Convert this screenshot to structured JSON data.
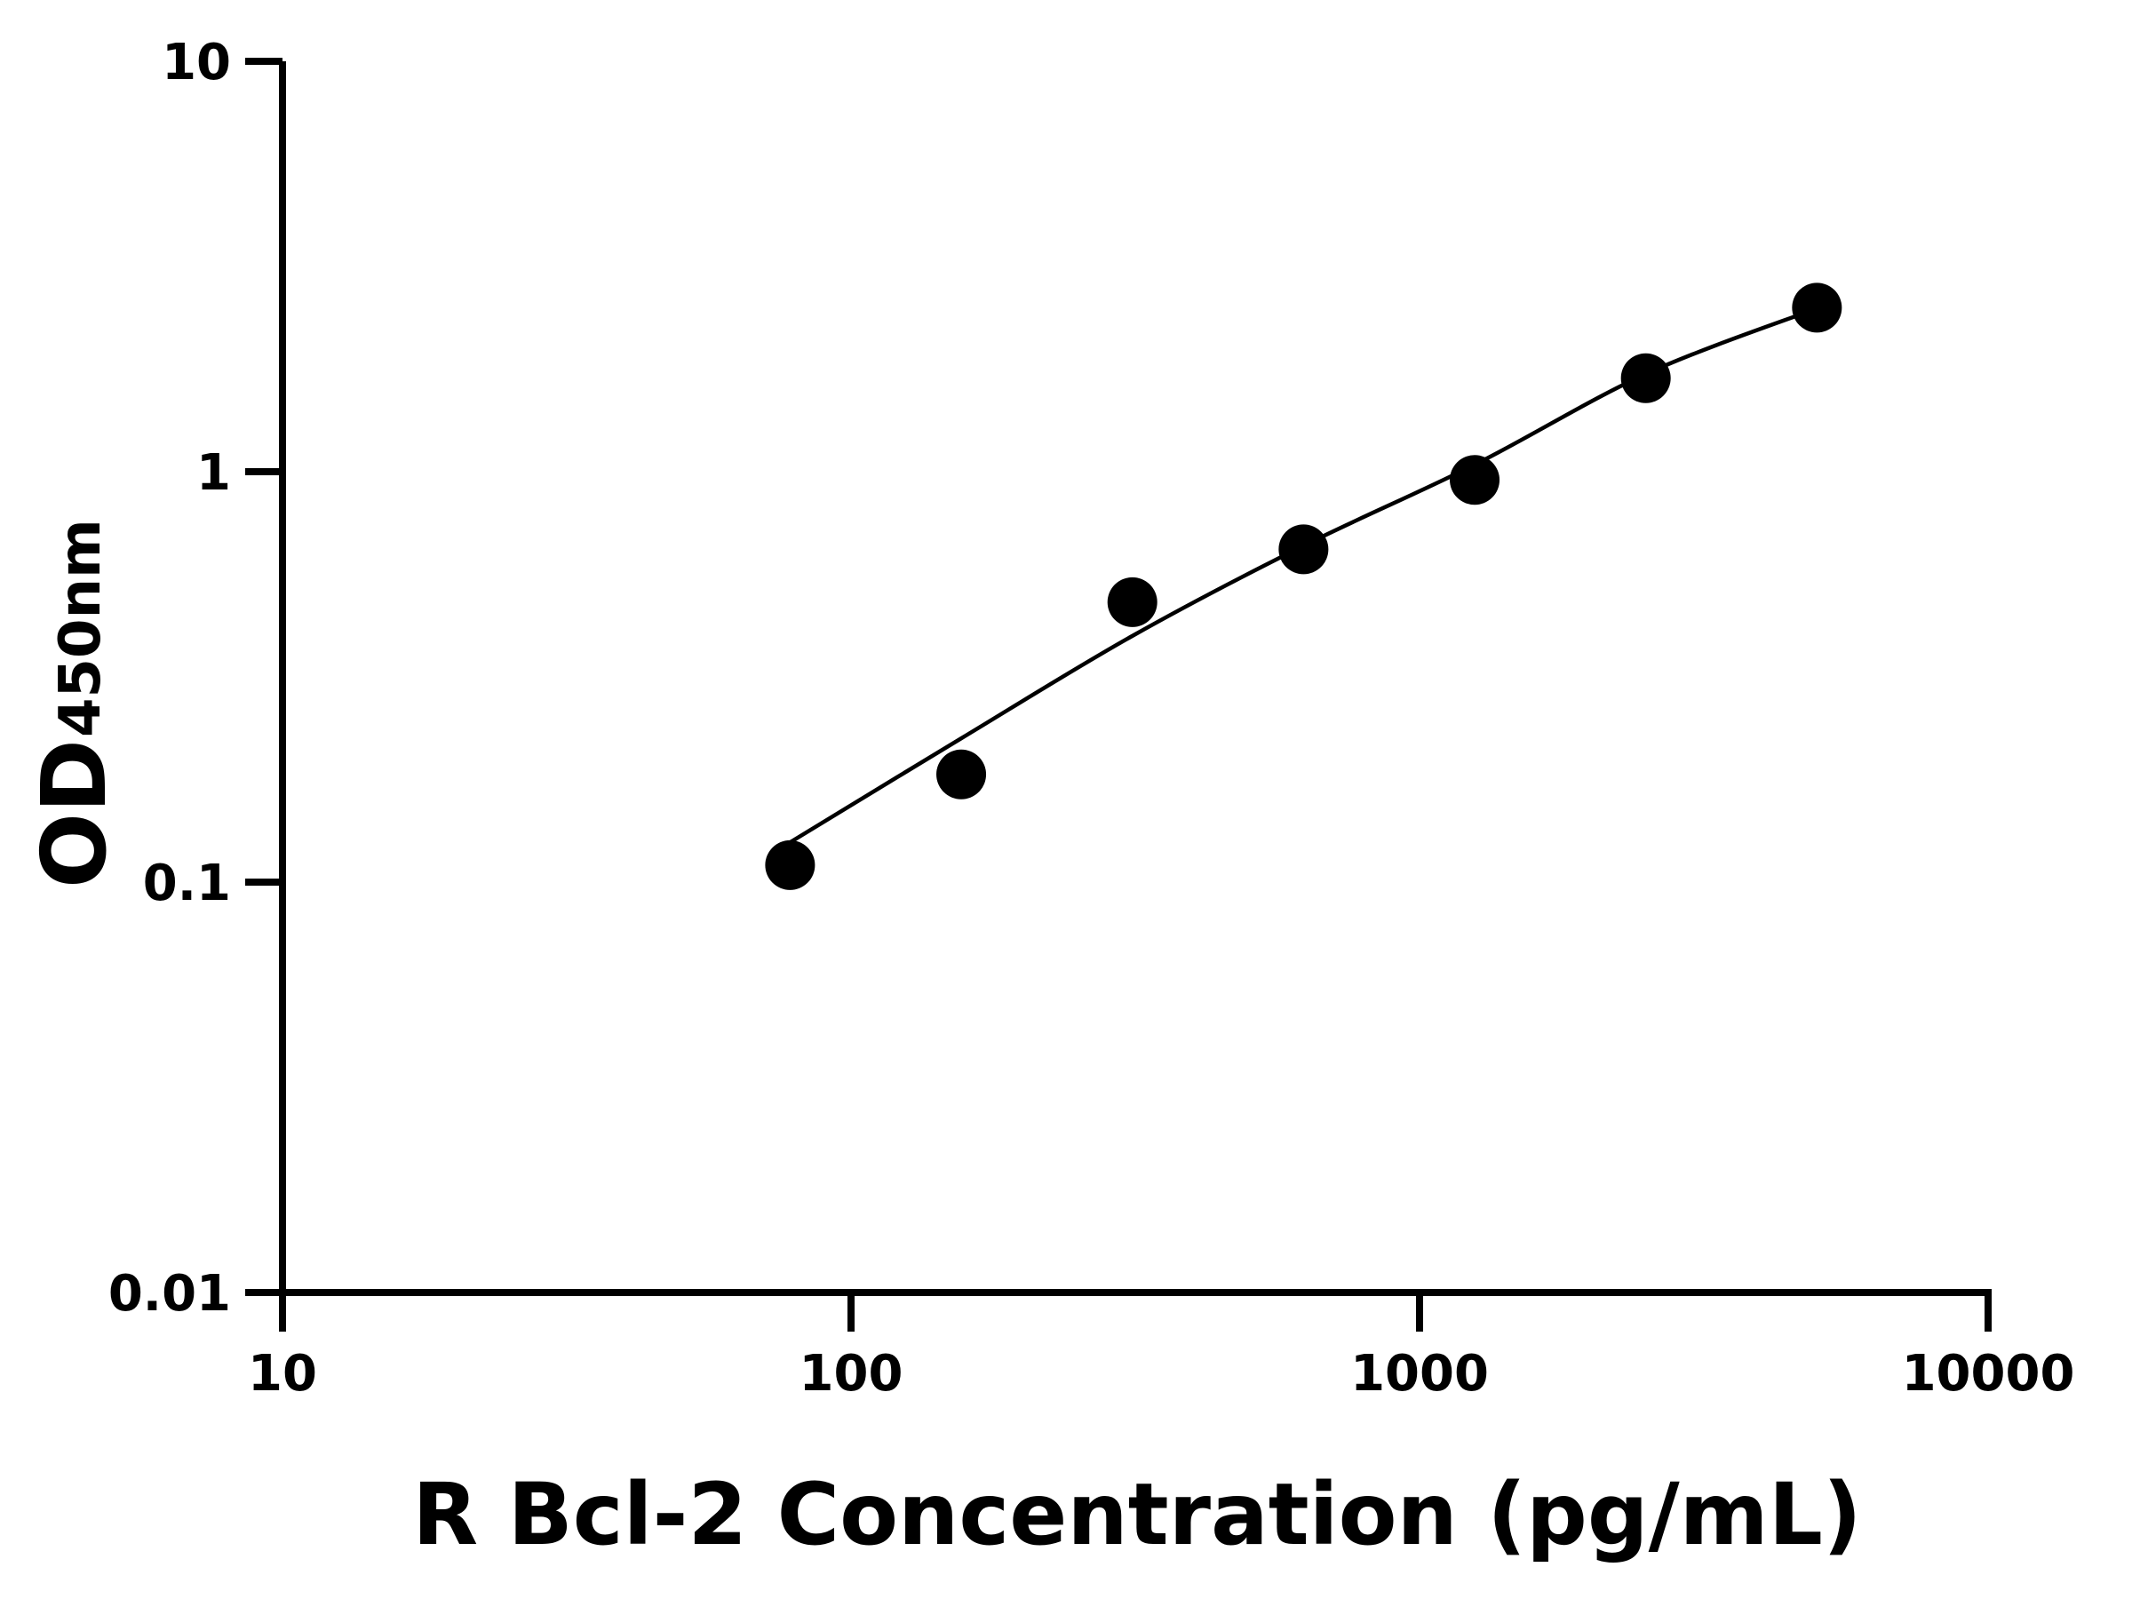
{
  "chart_data": {
    "type": "scatter",
    "title": "",
    "xlabel": "R Bcl-2 Concentration (pg/mL)",
    "ylabel_main": "OD",
    "ylabel_sub": "450nm",
    "x_scale": "log",
    "y_scale": "log",
    "xlim": [
      10,
      10000
    ],
    "ylim": [
      0.01,
      10
    ],
    "x_ticks": [
      10,
      100,
      1000,
      10000
    ],
    "x_tick_labels": [
      "10",
      "100",
      "1000",
      "10000"
    ],
    "y_ticks": [
      0.01,
      0.1,
      1,
      10
    ],
    "y_tick_labels": [
      "0.01",
      "0.1",
      "1",
      "10"
    ],
    "grid": false,
    "legend": "none",
    "series": [
      {
        "x": [
          78.125,
          156.25,
          312.5,
          625,
          1250,
          2500,
          5000
        ],
        "y": [
          0.11,
          0.183,
          0.481,
          0.647,
          0.955,
          1.69,
          2.51
        ]
      }
    ],
    "fitted_curve": {
      "x": [
        78.125,
        156.25,
        312.5,
        625,
        1250,
        2500,
        5000
      ],
      "y": [
        0.125,
        0.224,
        0.398,
        0.66,
        1.04,
        1.73,
        2.5
      ]
    },
    "colors": {
      "marker": "#000000",
      "curve": "#000000",
      "axis": "#000000"
    }
  }
}
